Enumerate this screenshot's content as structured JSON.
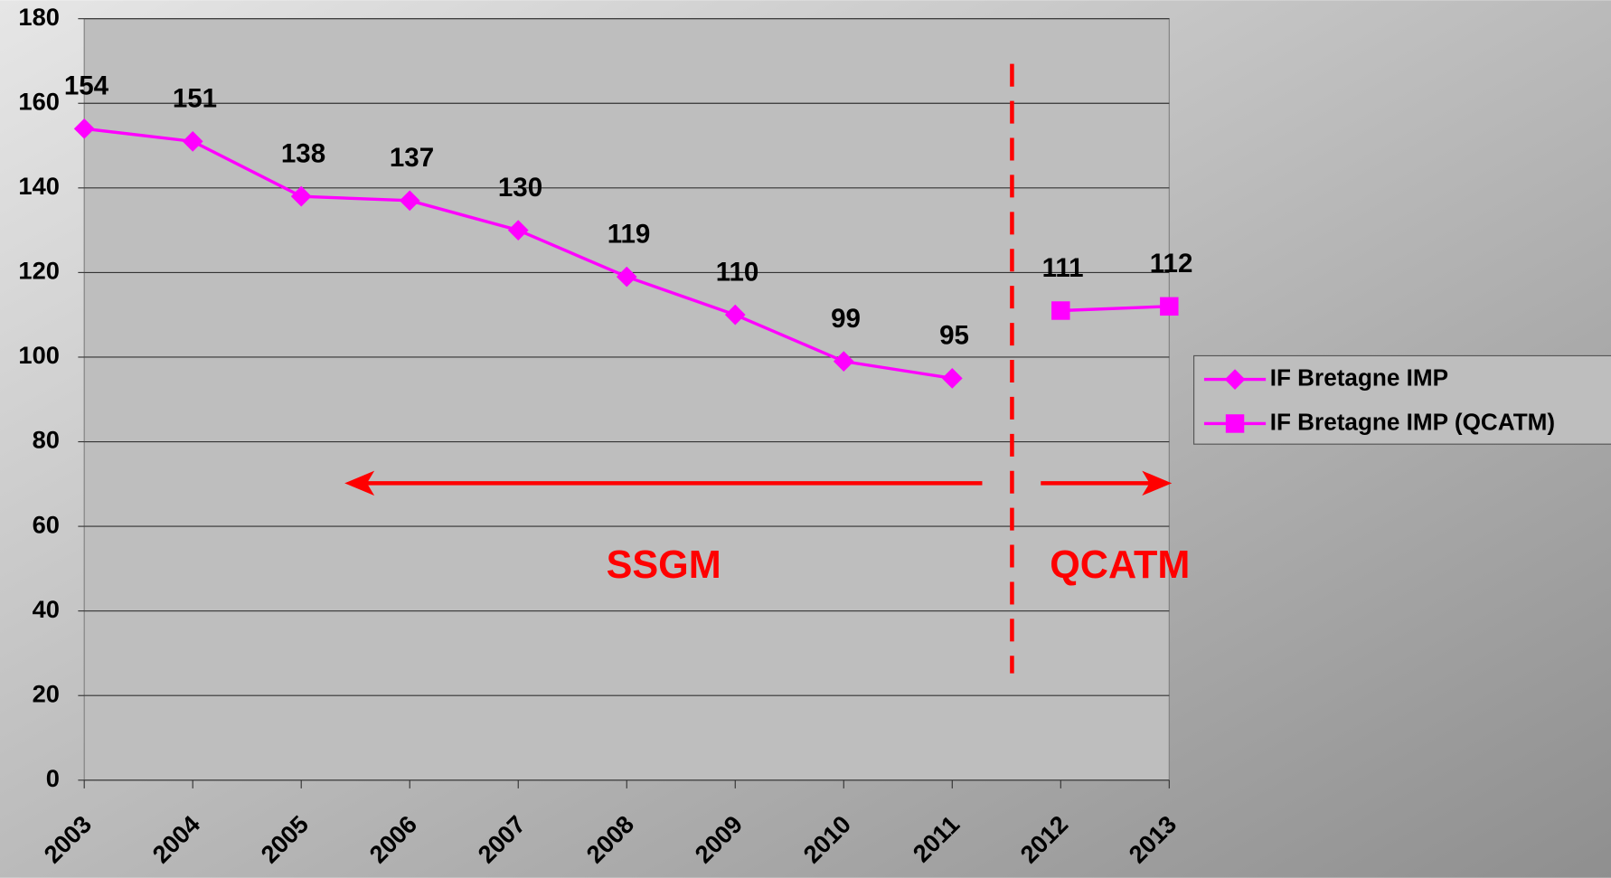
{
  "chart_data": {
    "type": "line",
    "categories": [
      "2003",
      "2004",
      "2005",
      "2006",
      "2007",
      "2008",
      "2009",
      "2010",
      "2011",
      "2012",
      "2013"
    ],
    "series": [
      {
        "name": "IF Bretagne IMP",
        "color": "#ff00ff",
        "marker": "diamond",
        "values": [
          154,
          151,
          138,
          137,
          130,
          119,
          110,
          99,
          95,
          null,
          null
        ]
      },
      {
        "name": "IF Bretagne IMP (QCATM)",
        "color": "#ff00ff",
        "marker": "square",
        "values": [
          null,
          null,
          null,
          null,
          null,
          null,
          null,
          null,
          null,
          111,
          112
        ]
      }
    ],
    "ylim": [
      0,
      180
    ],
    "yticks": [
      0,
      20,
      40,
      60,
      80,
      100,
      120,
      140,
      160,
      180
    ],
    "grid": true,
    "annotations": [
      "SSGM",
      "QCATM"
    ],
    "legend": "right"
  }
}
